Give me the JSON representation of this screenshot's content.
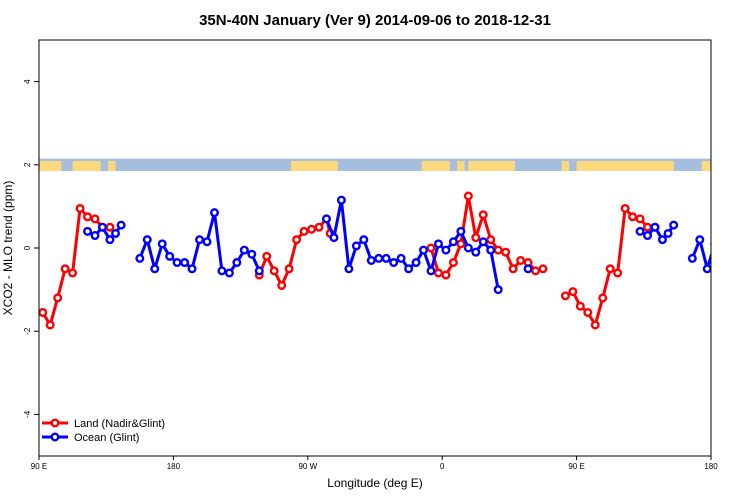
{
  "chart_data": {
    "type": "line",
    "title": "35N-40N January (Ver 9)   2014-09-06 to 2018-12-31",
    "xlabel": "Longitude (deg E)",
    "ylabel": "XCO2 - MLO trend (ppm)",
    "xlim": [
      90,
      450
    ],
    "ylim": [
      -5,
      5
    ],
    "x_ticks": [
      {
        "value": 90,
        "label": "90 E"
      },
      {
        "value": 162,
        "label": "180"
      },
      {
        "value": 234,
        "label": "90 W"
      },
      {
        "value": 306,
        "label": "0"
      },
      {
        "value": 378,
        "label": "90 E"
      },
      {
        "value": 450,
        "label": "180"
      }
    ],
    "y_ticks": [
      -4,
      -2,
      0,
      2,
      4
    ],
    "legend_position": "bottom-left",
    "land_mask_band": {
      "y_range": [
        1.85,
        2.15
      ],
      "land_color": "#fdd97b",
      "ocean_color": "#a6bedd"
    },
    "series": [
      {
        "name": "Land (Nadir&Glint)",
        "color": "#ff0000",
        "segments": [
          [
            [
              92,
              -1.55
            ],
            [
              96,
              -1.85
            ],
            [
              100,
              -1.2
            ],
            [
              104,
              -0.5
            ],
            [
              108,
              -0.6
            ],
            [
              112,
              0.95
            ],
            [
              116,
              0.75
            ],
            [
              120,
              0.7
            ],
            [
              124,
              0.5
            ],
            [
              128,
              0.5
            ]
          ],
          [
            [
              208,
              -0.65
            ],
            [
              212,
              -0.2
            ],
            [
              216,
              -0.55
            ],
            [
              220,
              -0.9
            ],
            [
              224,
              -0.5
            ],
            [
              228,
              0.2
            ],
            [
              232,
              0.4
            ],
            [
              236,
              0.45
            ],
            [
              240,
              0.5
            ],
            [
              244,
              0.7
            ],
            [
              246,
              0.35
            ]
          ],
          [
            [
              300,
              0.0
            ],
            [
              304,
              -0.6
            ],
            [
              308,
              -0.65
            ],
            [
              312,
              -0.35
            ],
            [
              316,
              0.1
            ],
            [
              320,
              1.25
            ],
            [
              324,
              0.25
            ],
            [
              328,
              0.8
            ],
            [
              332,
              0.2
            ],
            [
              336,
              -0.05
            ],
            [
              340,
              -0.1
            ],
            [
              344,
              -0.5
            ],
            [
              348,
              -0.3
            ],
            [
              352,
              -0.35
            ],
            [
              356,
              -0.55
            ],
            [
              360,
              -0.5
            ]
          ],
          [
            [
              372,
              -1.15
            ],
            [
              376,
              -1.05
            ],
            [
              380,
              -1.4
            ],
            [
              384,
              -1.55
            ],
            [
              388,
              -1.85
            ],
            [
              392,
              -1.2
            ],
            [
              396,
              -0.5
            ],
            [
              400,
              -0.6
            ],
            [
              404,
              0.95
            ],
            [
              408,
              0.75
            ],
            [
              412,
              0.7
            ],
            [
              416,
              0.5
            ],
            [
              420,
              0.5
            ]
          ]
        ]
      },
      {
        "name": "Ocean (Glint)",
        "color": "#0000ff",
        "segments": [
          [
            [
              116,
              0.4
            ],
            [
              120,
              0.3
            ],
            [
              124,
              0.5
            ],
            [
              128,
              0.2
            ],
            [
              131,
              0.35
            ],
            [
              134,
              0.55
            ]
          ],
          [
            [
              144,
              -0.25
            ],
            [
              148,
              0.2
            ],
            [
              152,
              -0.5
            ],
            [
              156,
              0.1
            ],
            [
              160,
              -0.2
            ],
            [
              164,
              -0.35
            ],
            [
              168,
              -0.35
            ],
            [
              172,
              -0.5
            ],
            [
              176,
              0.2
            ],
            [
              180,
              0.15
            ],
            [
              184,
              0.85
            ],
            [
              188,
              -0.55
            ],
            [
              192,
              -0.6
            ],
            [
              196,
              -0.35
            ],
            [
              200,
              -0.05
            ],
            [
              204,
              -0.15
            ],
            [
              208,
              -0.55
            ]
          ],
          [
            [
              244,
              0.7
            ],
            [
              248,
              0.25
            ],
            [
              252,
              1.15
            ],
            [
              256,
              -0.5
            ],
            [
              260,
              0.05
            ],
            [
              264,
              0.2
            ],
            [
              268,
              -0.3
            ],
            [
              272,
              -0.25
            ],
            [
              276,
              -0.25
            ],
            [
              280,
              -0.35
            ],
            [
              284,
              -0.25
            ],
            [
              288,
              -0.5
            ],
            [
              292,
              -0.35
            ],
            [
              296,
              -0.05
            ],
            [
              300,
              -0.55
            ],
            [
              304,
              0.1
            ],
            [
              308,
              -0.05
            ],
            [
              312,
              0.15
            ],
            [
              316,
              0.4
            ],
            [
              320,
              0.0
            ],
            [
              324,
              -0.1
            ],
            [
              328,
              0.15
            ],
            [
              332,
              -0.05
            ],
            [
              336,
              -1.0
            ]
          ],
          [
            [
              352,
              -0.5
            ]
          ],
          [
            [
              412,
              0.4
            ],
            [
              416,
              0.3
            ],
            [
              420,
              0.5
            ],
            [
              424,
              0.2
            ],
            [
              427,
              0.35
            ],
            [
              430,
              0.55
            ]
          ],
          [
            [
              440,
              -0.25
            ],
            [
              444,
              0.2
            ],
            [
              448,
              -0.5
            ],
            [
              452,
              0.1
            ],
            [
              456,
              -0.2
            ]
          ]
        ]
      }
    ]
  }
}
